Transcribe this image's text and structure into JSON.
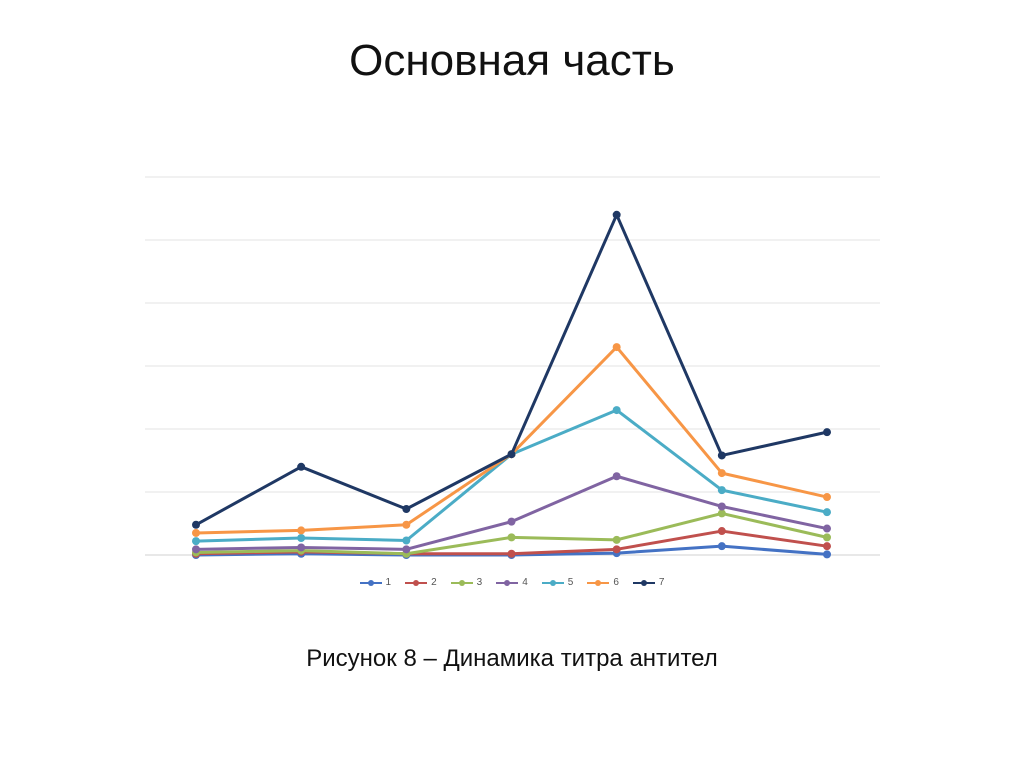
{
  "slide": {
    "title": "Основная часть",
    "caption": "Рисунок  8 – Динамика титра антител"
  },
  "chart_data": {
    "type": "line",
    "title": "",
    "xlabel": "",
    "ylabel": "",
    "categories": [
      "",
      "",
      "",
      "",
      "",
      "",
      ""
    ],
    "ylim": [
      0,
      6
    ],
    "grid": true,
    "legend_position": "bottom",
    "series": [
      {
        "name": "1",
        "color": "#4472C4",
        "values": [
          0.0,
          0.02,
          0.0,
          0.0,
          0.03,
          0.14,
          0.01
        ]
      },
      {
        "name": "2",
        "color": "#C0504D",
        "values": [
          0.02,
          0.05,
          0.02,
          0.02,
          0.09,
          0.38,
          0.14
        ]
      },
      {
        "name": "3",
        "color": "#9BBB59",
        "values": [
          0.04,
          0.07,
          0.02,
          0.28,
          0.24,
          0.66,
          0.28
        ]
      },
      {
        "name": "4",
        "color": "#8064A2",
        "values": [
          0.09,
          0.12,
          0.09,
          0.53,
          1.25,
          0.77,
          0.42
        ]
      },
      {
        "name": "5",
        "color": "#4BACC6",
        "values": [
          0.22,
          0.27,
          0.23,
          1.6,
          2.3,
          1.03,
          0.68
        ]
      },
      {
        "name": "6",
        "color": "#F79646",
        "values": [
          0.35,
          0.39,
          0.48,
          1.6,
          3.3,
          1.3,
          0.92
        ]
      },
      {
        "name": "7",
        "color": "#1F3864",
        "values": [
          0.48,
          1.4,
          0.73,
          1.6,
          5.4,
          1.58,
          1.95
        ]
      }
    ]
  }
}
